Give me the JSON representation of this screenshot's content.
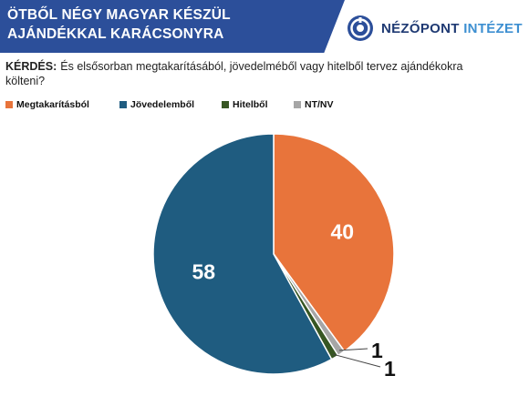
{
  "header": {
    "title": "ÖTBŐL NÉGY MAGYAR KÉSZÜL AJÁNDÉKKAL KARÁCSONYRA",
    "logo_text_main": "NÉZŐPONT",
    "logo_text_second": "INTÉZET",
    "logo_icon": "target-circle-icon"
  },
  "question": {
    "label": "KÉRDÉS:",
    "text": "És elsősorban megtakarításából, jövedelméből vagy hitelből tervez ajándékokra költeni?"
  },
  "chart_data": {
    "type": "pie",
    "series": [
      {
        "name": "Megtakarításból",
        "value": 40,
        "color": "#e8743b",
        "label": "40"
      },
      {
        "name": "NT/NV",
        "value": 1,
        "color": "#a6a6a6",
        "label": "1"
      },
      {
        "name": "Hitelből",
        "value": 1,
        "color": "#375623",
        "label": "1"
      },
      {
        "name": "Jövedelemből",
        "value": 58,
        "color": "#1f5c80",
        "label": "58"
      }
    ],
    "legend": [
      {
        "name": "Megtakarításból",
        "color": "#e8743b"
      },
      {
        "name": "Jövedelemből",
        "color": "#1f5c80"
      },
      {
        "name": "Hitelből",
        "color": "#375623"
      },
      {
        "name": "NT/NV",
        "color": "#a6a6a6"
      }
    ],
    "legend_position": "top",
    "start_angle_deg": 0,
    "direction": "clockwise"
  }
}
